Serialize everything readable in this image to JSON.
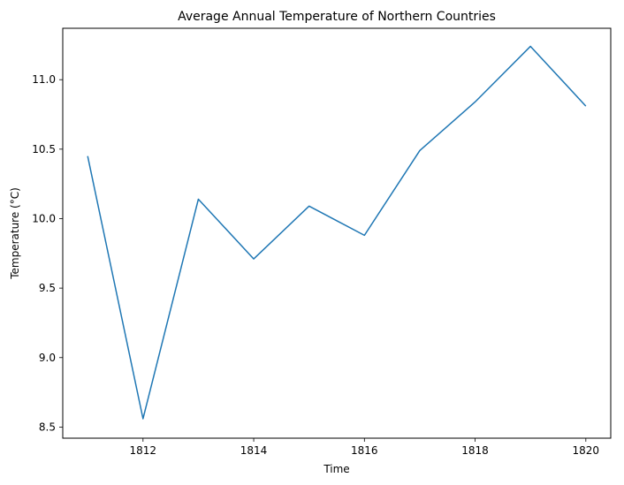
{
  "chart_data": {
    "type": "line",
    "title": "Average Annual Temperature of Northern Countries",
    "xlabel": "Time",
    "ylabel": "Temperature (°C)",
    "xlim": [
      1810.55,
      1820.45
    ],
    "ylim": [
      8.42,
      11.37
    ],
    "xticks": [
      1812,
      1814,
      1816,
      1818,
      1820
    ],
    "yticks": [
      8.5,
      9.0,
      9.5,
      10.0,
      10.5,
      11.0
    ],
    "grid": false,
    "series": [
      {
        "color": "#1f77b4",
        "x": [
          1811,
          1812,
          1813,
          1814,
          1815,
          1816,
          1817,
          1818,
          1819,
          1820
        ],
        "y": [
          10.45,
          8.56,
          10.14,
          9.71,
          10.09,
          9.88,
          10.49,
          10.84,
          11.24,
          10.81
        ]
      }
    ]
  }
}
